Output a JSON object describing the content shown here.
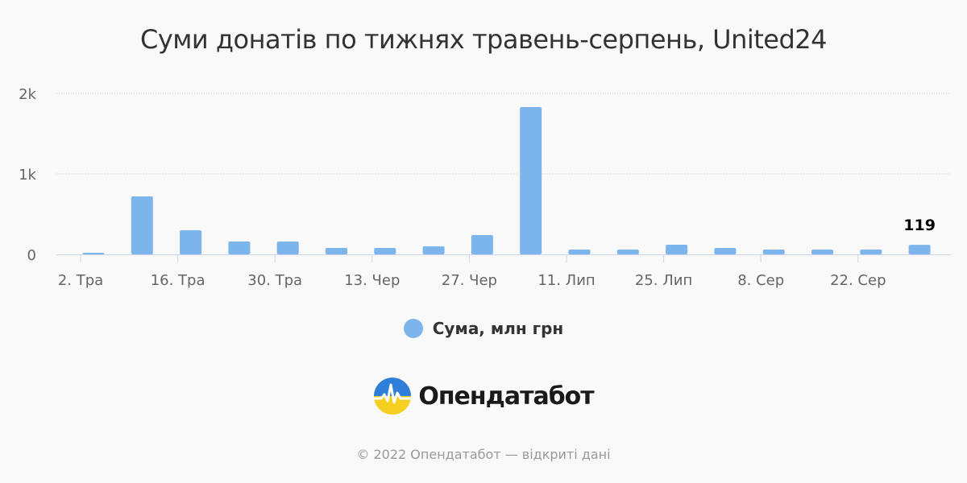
{
  "chart_data": {
    "type": "bar",
    "title": "Суми донатів по тижнях травень-серпень, United24",
    "y_ticks": [
      "0",
      "1k",
      "2k"
    ],
    "ylim": [
      0,
      2000
    ],
    "x_tick_labels": [
      "2. Тра",
      "16. Тра",
      "30. Тра",
      "13. Чер",
      "27. Чер",
      "11. Лип",
      "25. Лип",
      "8. Сер",
      "22. Сер"
    ],
    "series": [
      {
        "name": "Сума, млн грн",
        "color": "#7cb5ec",
        "values": [
          20,
          720,
          300,
          160,
          160,
          80,
          80,
          100,
          240,
          1830,
          60,
          60,
          120,
          80,
          60,
          60,
          60,
          119
        ]
      }
    ],
    "data_labels": [
      {
        "index": 17,
        "text": "119"
      }
    ],
    "grid": true,
    "legend_position": "bottom"
  },
  "legend": {
    "label": "Сума, млн грн"
  },
  "logo": {
    "text": "Опендатабот"
  },
  "footer": {
    "text": "© 2022 Опендатабот — відкриті дані"
  }
}
